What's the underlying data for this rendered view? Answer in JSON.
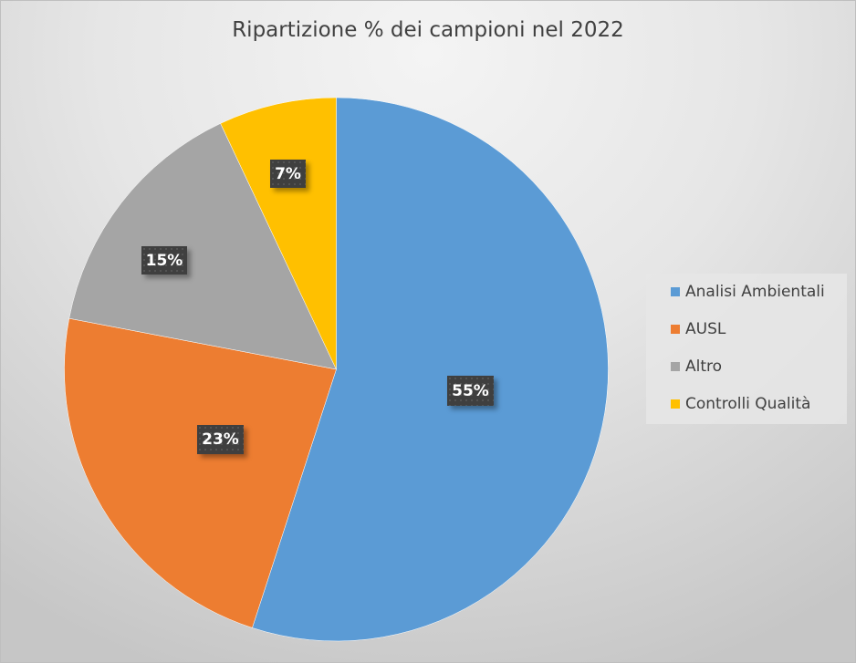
{
  "chart_data": {
    "type": "pie",
    "title": "Ripartizione % dei campioni nel 2022",
    "categories": [
      "Analisi Ambientali",
      "AUSL",
      "Altro",
      "Controlli Qualità"
    ],
    "values": [
      55,
      23,
      15,
      7
    ],
    "labels": [
      "55%",
      "23%",
      "15%",
      "7%"
    ],
    "colors": [
      "#5b9bd5",
      "#ed7d31",
      "#a5a5a5",
      "#ffc000"
    ],
    "legend_position": "right"
  },
  "legend": [
    {
      "label": "Analisi Ambientali",
      "color": "#5b9bd5"
    },
    {
      "label": "AUSL",
      "color": "#ed7d31"
    },
    {
      "label": "Altro",
      "color": "#a5a5a5"
    },
    {
      "label": "Controlli Qualità",
      "color": "#ffc000"
    }
  ]
}
